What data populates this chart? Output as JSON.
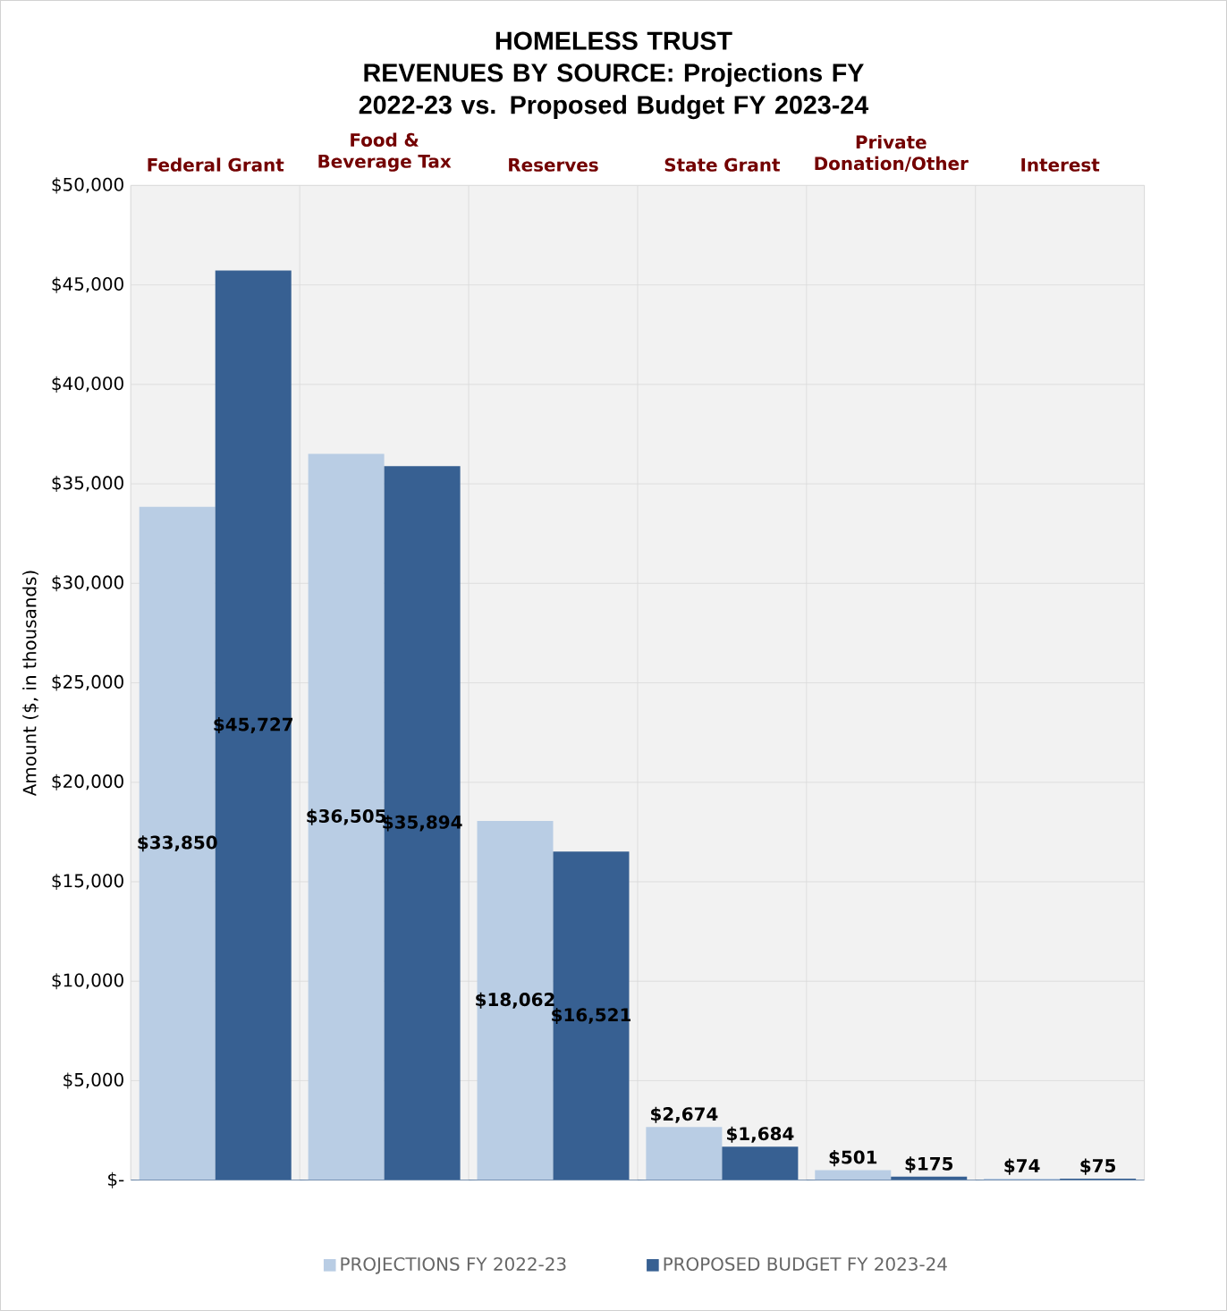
{
  "chart_data": {
    "type": "bar",
    "title": "HOMELESS TRUST",
    "subtitle": "REVENUES BY SOURCE: Projections FY 2022-23 vs.  Proposed Budget FY 2023-24",
    "ylabel": "Amount ($, in thousands)",
    "categories": [
      "Federal Grant",
      "Food & Beverage Tax",
      "Reserves",
      "State Grant",
      "Private Donation/Other",
      "Interest"
    ],
    "series": [
      {
        "name": "PROJECTIONS FY 2022-23",
        "color": "#b9cde4",
        "values": [
          33850,
          36505,
          18062,
          2674,
          501,
          74
        ],
        "value_labels": [
          "$33,850",
          "$36,505",
          "$18,062",
          "$2,674",
          "$501",
          "$74"
        ]
      },
      {
        "name": "PROPOSED BUDGET FY 2023-24",
        "color": "#376092",
        "values": [
          45727,
          35894,
          16521,
          1684,
          175,
          75
        ],
        "value_labels": [
          "$45,727",
          "$35,894",
          "$16,521",
          "$1,684",
          "$175",
          "$75"
        ]
      }
    ],
    "ylim": [
      0,
      50000
    ],
    "yticks": [
      {
        "value": 0,
        "label": "$-"
      },
      {
        "value": 5000,
        "label": "$5,000"
      },
      {
        "value": 10000,
        "label": "$10,000"
      },
      {
        "value": 15000,
        "label": "$15,000"
      },
      {
        "value": 20000,
        "label": "$20,000"
      },
      {
        "value": 25000,
        "label": "$25,000"
      },
      {
        "value": 30000,
        "label": "$30,000"
      },
      {
        "value": 35000,
        "label": "$35,000"
      },
      {
        "value": 40000,
        "label": "$40,000"
      },
      {
        "value": 45000,
        "label": "$45,000"
      },
      {
        "value": 50000,
        "label": "$50,000"
      }
    ],
    "grid": true,
    "legend": "bottom"
  }
}
